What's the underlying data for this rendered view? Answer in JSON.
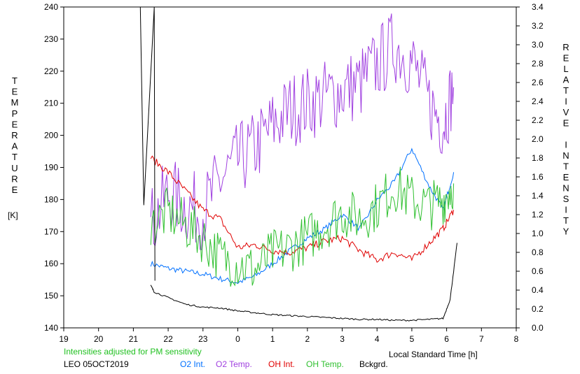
{
  "chart_data": {
    "type": "line",
    "left_axis": {
      "label": "TEMPERATURE",
      "unit": "[K]",
      "min": 140,
      "max": 240,
      "ticks": [
        "140",
        "150",
        "160",
        "170",
        "180",
        "190",
        "200",
        "210",
        "220",
        "230",
        "240"
      ]
    },
    "right_axis": {
      "label": "RELATIVE INTENSITY",
      "min": 0.0,
      "max": 3.4,
      "ticks": [
        "0.0",
        "0.2",
        "0.4",
        "0.6",
        "0.8",
        "1.0",
        "1.2",
        "1.4",
        "1.6",
        "1.8",
        "2.0",
        "2.2",
        "2.4",
        "2.6",
        "2.8",
        "3.0",
        "3.2",
        "3.4"
      ]
    },
    "x_axis": {
      "label": "Local Standard Time [h]",
      "min": 19,
      "max": 32,
      "tick_labels": [
        "19",
        "20",
        "21",
        "22",
        "23",
        "0",
        "1",
        "2",
        "3",
        "4",
        "5",
        "6",
        "7",
        "8"
      ]
    },
    "note": "Intensities adjusted for PM sensitivity",
    "station": "LEO 05OCT2019",
    "series": [
      {
        "name": "O2 Int.",
        "color": "#0070ff",
        "axis": "right",
        "x": [
          21.5,
          22.0,
          22.5,
          23.0,
          23.5,
          24.0,
          24.5,
          25.0,
          25.5,
          26.0,
          26.5,
          27.0,
          27.5,
          28.0,
          28.5,
          29.0,
          29.5,
          29.9,
          30.2
        ],
        "y": [
          0.68,
          0.63,
          0.6,
          0.57,
          0.52,
          0.48,
          0.55,
          0.68,
          0.82,
          0.95,
          1.05,
          1.2,
          1.05,
          1.35,
          1.55,
          1.9,
          1.5,
          1.25,
          1.65
        ]
      },
      {
        "name": "O2 Temp.",
        "color": "#a040e0",
        "axis": "left",
        "x": [
          21.5,
          22.0,
          22.5,
          23.0,
          23.5,
          24.0,
          24.5,
          25.0,
          25.5,
          26.0,
          26.5,
          27.0,
          27.5,
          28.0,
          28.5,
          29.0,
          29.5,
          29.9,
          30.2
        ],
        "y": [
          172,
          182,
          178,
          176,
          186,
          192,
          196,
          203,
          208,
          210,
          212,
          214,
          216,
          222,
          228,
          223,
          210,
          204,
          215
        ]
      },
      {
        "name": "OH Int.",
        "color": "#e00000",
        "axis": "right",
        "x": [
          21.5,
          22.0,
          22.5,
          23.0,
          23.5,
          24.0,
          24.5,
          25.0,
          25.5,
          26.0,
          26.5,
          27.0,
          27.5,
          28.0,
          28.5,
          29.0,
          29.5,
          29.9,
          30.2
        ],
        "y": [
          1.8,
          1.65,
          1.45,
          1.25,
          1.15,
          0.85,
          0.88,
          0.82,
          0.8,
          0.85,
          0.92,
          0.95,
          0.82,
          0.72,
          0.8,
          0.72,
          0.9,
          1.05,
          1.25
        ]
      },
      {
        "name": "OH Temp.",
        "color": "#30c030",
        "axis": "left",
        "x": [
          21.5,
          22.0,
          22.5,
          23.0,
          23.5,
          24.0,
          24.5,
          25.0,
          25.5,
          26.0,
          26.5,
          27.0,
          27.5,
          28.0,
          28.5,
          29.0,
          29.5,
          29.9,
          30.2
        ],
        "y": [
          172,
          176,
          172,
          168,
          162,
          160,
          158,
          163,
          165,
          168,
          172,
          176,
          174,
          178,
          184,
          180,
          178,
          180,
          185
        ]
      },
      {
        "name": "Bckgrd.",
        "color": "#000000",
        "axis": "right",
        "x": [
          21.5,
          21.6,
          22.0,
          22.5,
          23.0,
          23.5,
          24.0,
          24.5,
          25.0,
          25.5,
          26.0,
          26.5,
          27.0,
          27.5,
          28.0,
          28.5,
          29.0,
          29.5,
          29.9,
          30.1,
          30.3
        ],
        "y": [
          0.45,
          0.38,
          0.32,
          0.25,
          0.22,
          0.21,
          0.18,
          0.16,
          0.14,
          0.13,
          0.12,
          0.11,
          0.1,
          0.09,
          0.09,
          0.08,
          0.08,
          0.09,
          0.1,
          0.3,
          0.9
        ]
      }
    ]
  }
}
